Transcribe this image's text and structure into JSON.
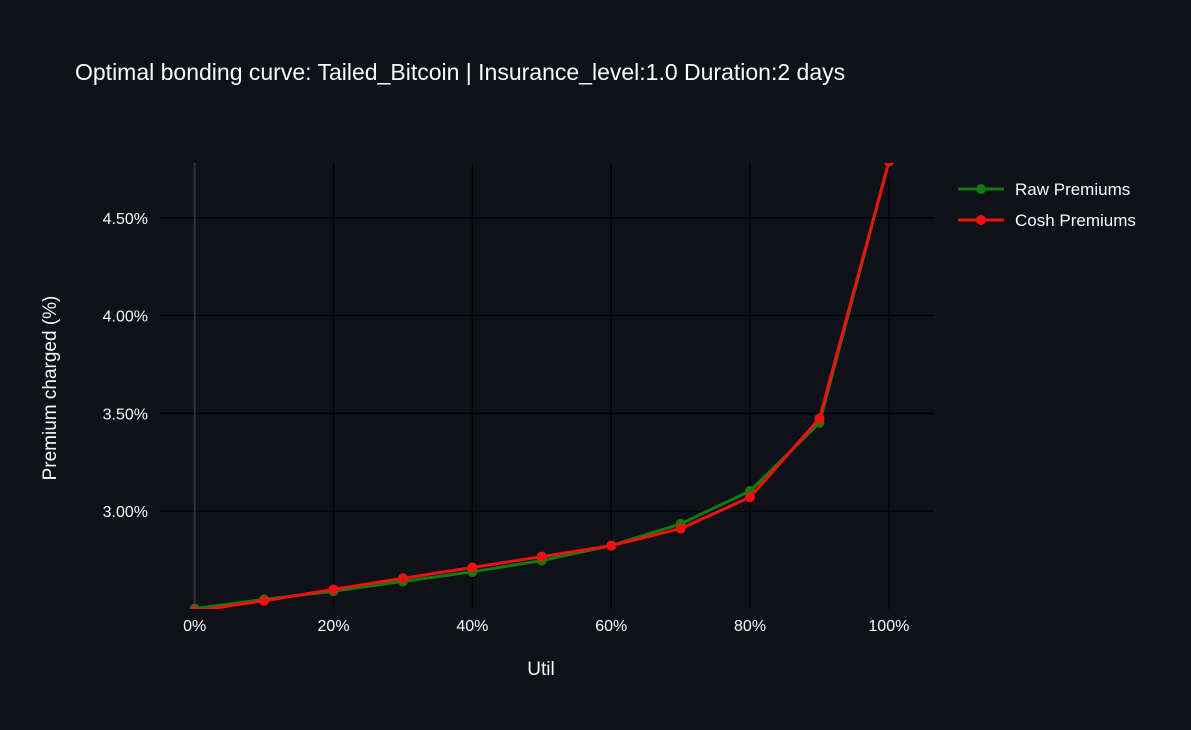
{
  "chart_data": {
    "type": "line",
    "title": "Optimal bonding curve: Tailed_Bitcoin | Insurance_level:1.0 Duration:2 days",
    "xlabel": "Util",
    "ylabel": "Premium charged (%)",
    "x": [
      0,
      10,
      20,
      30,
      40,
      50,
      60,
      70,
      80,
      90,
      100
    ],
    "xlim": [
      -5,
      106.5
    ],
    "ylim": [
      2.5,
      4.78
    ],
    "x_ticks": [
      0,
      20,
      40,
      60,
      80,
      100
    ],
    "x_tick_labels": [
      "0%",
      "20%",
      "40%",
      "60%",
      "80%",
      "100%"
    ],
    "y_ticks": [
      3.0,
      3.5,
      4.0,
      4.5
    ],
    "y_tick_labels": [
      "3.00%",
      "3.50%",
      "4.00%",
      "4.50%"
    ],
    "grid": true,
    "legend_position": "top-right",
    "series": [
      {
        "name": "Raw Premiums",
        "color": "#127a12",
        "values": [
          2.502,
          2.549,
          2.591,
          2.641,
          2.69,
          2.748,
          2.824,
          2.935,
          3.103,
          3.452,
          4.787
        ]
      },
      {
        "name": "Cosh Premiums",
        "color": "#ee1111",
        "values": [
          2.49,
          2.542,
          2.6,
          2.657,
          2.712,
          2.768,
          2.824,
          2.911,
          3.071,
          3.474,
          4.787
        ]
      }
    ],
    "colors": {
      "background": "#0e1117",
      "grid": "#000000",
      "zero_line": "#2c3440",
      "text": "#fafafa"
    }
  }
}
